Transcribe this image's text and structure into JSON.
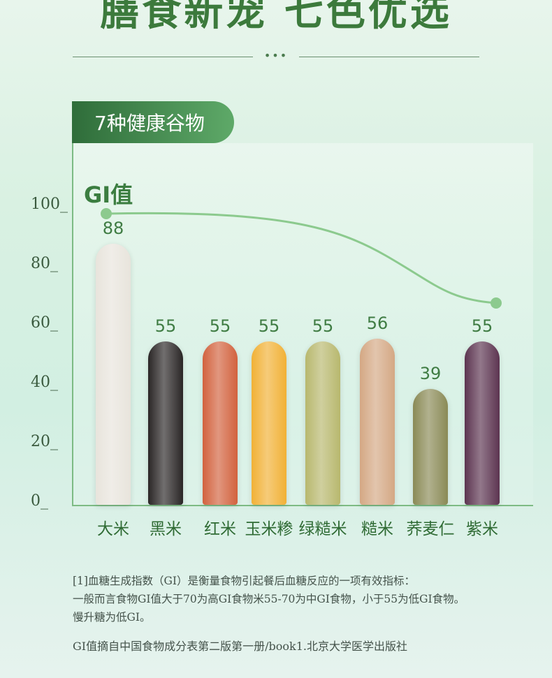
{
  "header": {
    "headline": "膳食新宠 七色优选",
    "dots": "•••",
    "pill_label": "7种健康谷物"
  },
  "chart_data": {
    "type": "bar",
    "title": "GI值",
    "ylim": [
      0,
      100
    ],
    "yticks": [
      "100_",
      "80_",
      "60_",
      "40_",
      "20_",
      "0_"
    ],
    "categories": [
      "大米",
      "黑米",
      "红米",
      "玉米糁",
      "绿糙米",
      "糙米",
      "荞麦仁",
      "紫米"
    ],
    "values": [
      88,
      55,
      55,
      55,
      55,
      56,
      39,
      55
    ],
    "value_labels": [
      "88",
      "55",
      "55",
      "55",
      "55",
      "56",
      "39",
      "55"
    ],
    "bar_colors": [
      "#e8e4dc",
      "#2a2626",
      "#d2623e",
      "#f1b136",
      "#b8b86e",
      "#d4a884",
      "#8a8a56",
      "#5c3450"
    ],
    "trend_line": {
      "start_label_index": 0,
      "end_label_index": 7,
      "color": "#8cca8e"
    }
  },
  "notes": {
    "line1": "[1]血糖生成指数（GI）是衡量食物引起餐后血糖反应的一项有效指标：",
    "line2": "一般而言食物GI值大于70为高GI食物米55-70为中GI食物，小于55为低GI食物。",
    "line3": "慢升糖为低GI。",
    "source": "GI值摘自中国食物成分表第二版第一册/book1.北京大学医学出版社"
  }
}
